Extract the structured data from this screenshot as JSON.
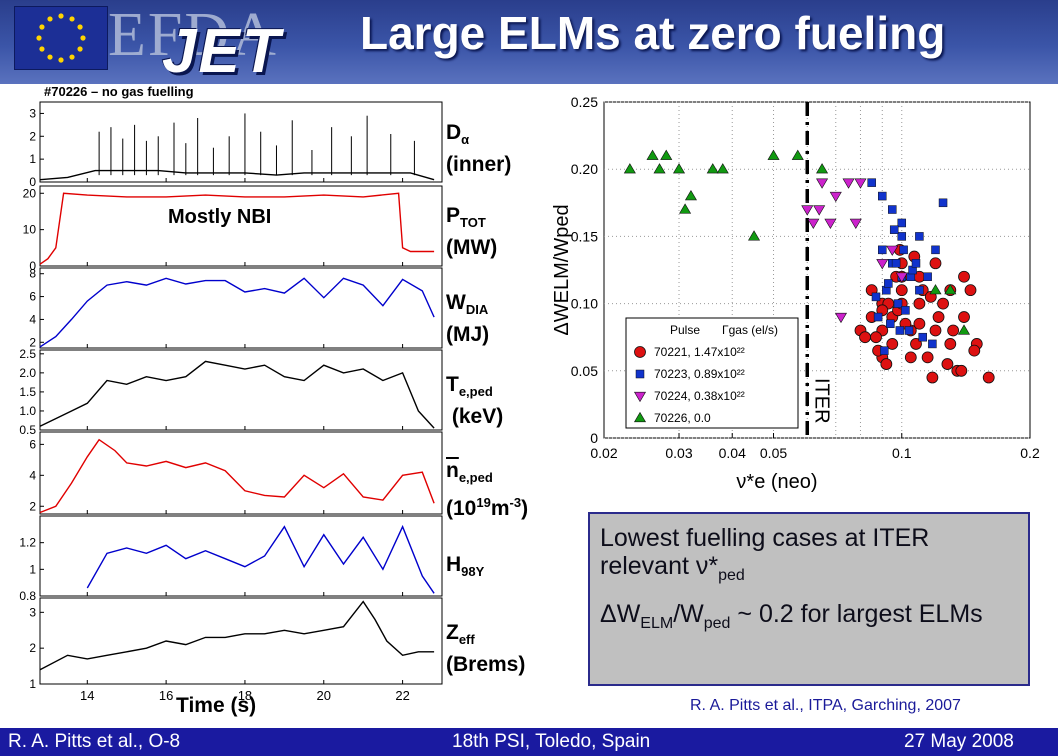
{
  "header": {
    "title": "Large ELMs at zero fueling",
    "logo_text": "EFDA JET"
  },
  "footer": {
    "left": "R. A. Pitts et al., O-8",
    "center": "18th PSI, Toledo, Spain",
    "right": "27 May 2008"
  },
  "left_figure": {
    "pulse_label": "#70226 – no gas fuelling",
    "annotation": "Mostly NBI",
    "xlabel": "Time (s)",
    "signals": [
      {
        "label_main": "D",
        "label_sub": "α",
        "label_unit": "(inner)"
      },
      {
        "label_main": "P",
        "label_sub": "TOT",
        "label_unit": "(MW)"
      },
      {
        "label_main": "W",
        "label_sub": "DIA",
        "label_unit": "(MJ)"
      },
      {
        "label_main": "T",
        "label_sub": "e,ped",
        "label_unit": "(keV)"
      },
      {
        "label_main": "n",
        "label_sub": "e,ped",
        "label_unit": "(10",
        "label_sup": "19",
        "label_unit2": "m",
        "label_sup2": "-3",
        "label_unit3": ")"
      },
      {
        "label_main": "H",
        "label_sub": "98Y",
        "label_unit": ""
      },
      {
        "label_main": "Z",
        "label_sub": "eff",
        "label_unit": "(Brems)"
      }
    ]
  },
  "chart_data": [
    {
      "type": "line",
      "title": "#70226 – no gas fuelling",
      "xlabel": "Time (s)",
      "xlim": [
        12.8,
        23
      ],
      "xticks": [
        14,
        16,
        18,
        20,
        22
      ],
      "panels": [
        {
          "name": "Dα (inner)",
          "color": "#000000",
          "ylim": [
            0,
            3.5
          ],
          "yticks": [
            "0",
            "1",
            "2",
            "3"
          ],
          "x": [
            12.8,
            13.5,
            14.2,
            15,
            15.8,
            16.5,
            17.2,
            18,
            18.8,
            19.5,
            20.2,
            21,
            21.6,
            22.2,
            22.8
          ],
          "y": [
            0.1,
            0.2,
            0.5,
            0.5,
            0.5,
            0.4,
            0.4,
            0.4,
            0.3,
            0.4,
            0.4,
            0.4,
            0.4,
            0.4,
            0.1
          ]
        },
        {
          "name": "PTOT (MW)",
          "color": "#e00000",
          "ylim": [
            0,
            22
          ],
          "yticks": [
            "0",
            "10",
            "20"
          ],
          "x": [
            12.8,
            13.0,
            13.2,
            13.4,
            14,
            15,
            16,
            17,
            18,
            19,
            20,
            21,
            21.9,
            22.0,
            22.2,
            22.5,
            22.8
          ],
          "y": [
            0.5,
            2,
            5,
            20,
            19.5,
            19,
            19,
            19.5,
            19,
            19,
            19.5,
            19,
            20,
            5,
            4,
            4,
            4
          ]
        },
        {
          "name": "WDIA (MJ)",
          "color": "#0000cc",
          "ylim": [
            1.5,
            8.5
          ],
          "yticks": [
            "2",
            "4",
            "6",
            "8"
          ],
          "x": [
            12.8,
            13.2,
            13.6,
            14,
            14.5,
            15,
            15.5,
            16,
            16.5,
            17,
            17.5,
            18,
            18.5,
            19,
            19.5,
            20,
            20.5,
            21,
            21.5,
            22,
            22.5,
            22.8
          ],
          "y": [
            1.6,
            2.5,
            4,
            5.6,
            7,
            7.3,
            7.0,
            7.6,
            7.1,
            7.4,
            7.4,
            6.4,
            6.7,
            6.3,
            7.6,
            5.9,
            7.6,
            7.0,
            5.2,
            7.5,
            6.5,
            4.2
          ]
        },
        {
          "name": "Te,ped (keV)",
          "color": "#000000",
          "ylim": [
            0.5,
            2.6
          ],
          "yticks": [
            "0.5",
            "1.0",
            "1.5",
            "2.0",
            "2.5"
          ],
          "x": [
            12.8,
            13.2,
            13.6,
            14,
            14.5,
            15,
            15.5,
            16,
            16.5,
            17,
            17.5,
            18,
            18.5,
            19,
            19.5,
            20,
            20.5,
            21,
            21.5,
            22,
            22.4,
            22.8
          ],
          "y": [
            0.6,
            0.8,
            1.0,
            1.2,
            1.8,
            1.7,
            1.9,
            1.8,
            1.9,
            2.3,
            2.2,
            2.1,
            2.2,
            1.9,
            1.8,
            2.2,
            2.0,
            2.1,
            1.8,
            2.0,
            1.0,
            0.55
          ]
        },
        {
          "name": "ne,ped (10^19 m^-3)",
          "color": "#e00000",
          "ylim": [
            1.5,
            6.8
          ],
          "yticks": [
            "2",
            "4",
            "6"
          ],
          "x": [
            12.8,
            13.2,
            13.6,
            14,
            14.3,
            14.7,
            15,
            15.5,
            16,
            16.5,
            17,
            17.5,
            18,
            18.5,
            19,
            19.5,
            20,
            20.5,
            21,
            21.5,
            22,
            22.5,
            22.8
          ],
          "y": [
            1.6,
            2.0,
            3.5,
            5.2,
            6.3,
            5.6,
            4.8,
            4.6,
            4.9,
            4.5,
            4.8,
            4.3,
            3.0,
            2.7,
            2.6,
            4.0,
            3.2,
            4.1,
            2.6,
            2.4,
            4.0,
            4.2,
            2.2
          ]
        },
        {
          "name": "H98Y",
          "color": "#0000cc",
          "ylim": [
            0.8,
            1.4
          ],
          "yticks": [
            "0.8",
            "1",
            "1.2"
          ],
          "x": [
            14,
            14.5,
            15,
            15.5,
            16,
            16.5,
            17,
            17.5,
            18,
            18.5,
            19,
            19.5,
            20,
            20.5,
            21,
            21.5,
            22,
            22.5,
            22.8
          ],
          "y": [
            0.86,
            1.12,
            1.16,
            1.12,
            1.18,
            1.08,
            1.14,
            1.08,
            1.02,
            1.1,
            1.32,
            1.02,
            1.26,
            1.04,
            1.24,
            1.0,
            1.32,
            0.95,
            0.82
          ]
        },
        {
          "name": "Zeff (Brems)",
          "color": "#000000",
          "ylim": [
            1,
            3.4
          ],
          "yticks": [
            "1",
            "2",
            "3"
          ],
          "x": [
            12.8,
            13.5,
            14,
            14.5,
            15,
            15.5,
            16,
            16.5,
            17,
            17.5,
            18,
            18.5,
            19,
            19.5,
            20,
            20.5,
            21,
            21.3,
            21.6,
            22,
            22.4,
            22.8
          ],
          "y": [
            1.4,
            1.8,
            1.7,
            1.8,
            1.9,
            2.0,
            2.2,
            2.1,
            2.3,
            2.3,
            2.4,
            2.4,
            2.5,
            2.4,
            2.5,
            2.6,
            3.3,
            2.8,
            2.2,
            1.8,
            1.9,
            1.9
          ]
        }
      ]
    },
    {
      "type": "scatter",
      "xlabel": "ν*e (neo)",
      "ylabel": "ΔWELM/Wped",
      "xscale": "log",
      "xlim": [
        0.02,
        0.2
      ],
      "ylim": [
        0,
        0.25
      ],
      "xticks": [
        "0.02",
        "0.03",
        "0.04",
        "0.05",
        "0.1",
        "0.2"
      ],
      "yticks": [
        "0",
        "0.05",
        "0.10",
        "0.15",
        "0.20",
        "0.25"
      ],
      "grid": true,
      "vline": {
        "x": 0.06,
        "label": "ITER"
      },
      "legend": {
        "title": "Pulse",
        "title2": "Γgas (el/s)",
        "position": "bottom-left",
        "entries": [
          "70221, 1.47x10²²",
          "70223, 0.89x10²²",
          "70224, 0.38x10²²",
          "70226, 0.0"
        ]
      },
      "series": [
        {
          "name": "70221, 1.47x10²²",
          "marker": "circle",
          "color": "#dd1111",
          "x": [
            0.08,
            0.085,
            0.09,
            0.095,
            0.1,
            0.105,
            0.11,
            0.12,
            0.13,
            0.14,
            0.15,
            0.085,
            0.09,
            0.1,
            0.11,
            0.12,
            0.13,
            0.14,
            0.09,
            0.095,
            0.1,
            0.105,
            0.115,
            0.125,
            0.135,
            0.145,
            0.082,
            0.088,
            0.093,
            0.098,
            0.102,
            0.108,
            0.118,
            0.128,
            0.138,
            0.148,
            0.16,
            0.092,
            0.097,
            0.112,
            0.122,
            0.132,
            0.087,
            0.099,
            0.107,
            0.117,
            0.09,
            0.1,
            0.11
          ],
          "y": [
            0.08,
            0.09,
            0.1,
            0.07,
            0.11,
            0.06,
            0.12,
            0.13,
            0.11,
            0.09,
            0.07,
            0.11,
            0.08,
            0.12,
            0.1,
            0.08,
            0.07,
            0.12,
            0.06,
            0.09,
            0.13,
            0.08,
            0.06,
            0.1,
            0.05,
            0.11,
            0.075,
            0.065,
            0.1,
            0.095,
            0.085,
            0.07,
            0.045,
            0.055,
            0.05,
            0.065,
            0.045,
            0.055,
            0.12,
            0.11,
            0.09,
            0.08,
            0.075,
            0.14,
            0.135,
            0.105,
            0.095,
            0.1,
            0.085
          ]
        },
        {
          "name": "70223, 0.89x10²²",
          "marker": "square",
          "color": "#1133cc",
          "x": [
            0.085,
            0.09,
            0.095,
            0.1,
            0.11,
            0.12,
            0.09,
            0.095,
            0.1,
            0.105,
            0.11,
            0.092,
            0.098,
            0.102,
            0.088,
            0.094,
            0.099,
            0.104,
            0.112,
            0.118,
            0.091,
            0.097,
            0.101,
            0.106,
            0.125,
            0.087,
            0.093,
            0.1,
            0.108,
            0.115,
            0.096
          ],
          "y": [
            0.19,
            0.18,
            0.17,
            0.16,
            0.15,
            0.14,
            0.14,
            0.13,
            0.12,
            0.12,
            0.11,
            0.11,
            0.1,
            0.095,
            0.09,
            0.085,
            0.08,
            0.08,
            0.075,
            0.07,
            0.065,
            0.13,
            0.14,
            0.125,
            0.175,
            0.105,
            0.115,
            0.15,
            0.13,
            0.12,
            0.155
          ]
        },
        {
          "name": "70224, 0.38x10²²",
          "marker": "triangle-down",
          "color": "#cc22cc",
          "x": [
            0.06,
            0.065,
            0.07,
            0.075,
            0.08,
            0.062,
            0.068,
            0.078,
            0.09,
            0.095,
            0.1,
            0.064,
            0.072
          ],
          "y": [
            0.17,
            0.19,
            0.18,
            0.19,
            0.19,
            0.16,
            0.16,
            0.16,
            0.13,
            0.14,
            0.12,
            0.17,
            0.09
          ]
        },
        {
          "name": "70226, 0.0",
          "marker": "triangle-up",
          "color": "#119911",
          "x": [
            0.023,
            0.026,
            0.027,
            0.028,
            0.03,
            0.031,
            0.032,
            0.036,
            0.038,
            0.045,
            0.05,
            0.057,
            0.065,
            0.12,
            0.13,
            0.14
          ],
          "y": [
            0.2,
            0.21,
            0.2,
            0.21,
            0.2,
            0.17,
            0.18,
            0.2,
            0.2,
            0.15,
            0.21,
            0.21,
            0.2,
            0.11,
            0.11,
            0.08
          ]
        }
      ]
    }
  ],
  "right_box": {
    "line1a": "Lowest fuelling cases at ITER relevant ",
    "line1_nu": "ν*",
    "line1_sub": "ped",
    "line2_delta": "ΔW",
    "line2_sub1": "ELM",
    "line2_mid": "/W",
    "line2_sub2": "ped",
    "line2_end": " ~ 0.2 for largest ELMs"
  },
  "citation": "R. A. Pitts et al., ITPA, Garching, 2007"
}
